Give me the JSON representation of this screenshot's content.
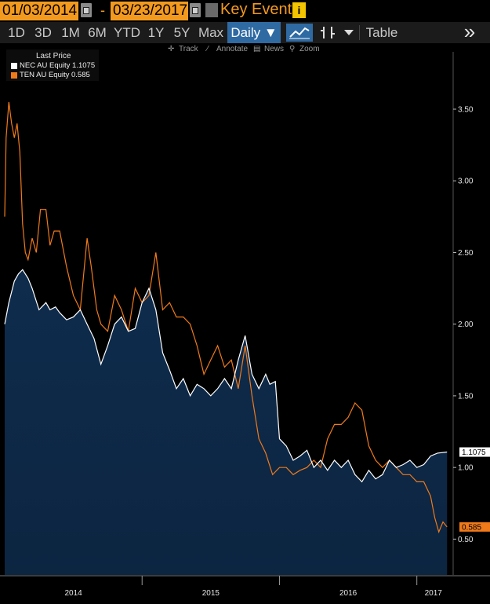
{
  "header": {
    "start_date": "01/03/2014",
    "end_date": "03/23/2017",
    "dash": "-",
    "key_events": "Key Events",
    "info_icon": "i"
  },
  "toolbar": {
    "periods": [
      "1D",
      "3D",
      "1M",
      "6M",
      "YTD",
      "1Y",
      "5Y",
      "Max"
    ],
    "frequency": "Daily ▼",
    "table": "Table",
    "more": "»"
  },
  "subtoolbar": {
    "track": "Track",
    "annotate": "Annotate",
    "news": "News",
    "zoom": "Zoom"
  },
  "colors": {
    "nec": "#ffffff",
    "ten": "#f07a1a",
    "area": "#0e2b4a",
    "background": "#000000"
  },
  "chart_data": {
    "type": "area",
    "legend_title": "Last Price",
    "legend_placement": "top-left",
    "y_ticks": [
      "0.50",
      "1.00",
      "1.50",
      "2.00",
      "2.50",
      "3.00",
      "3.50"
    ],
    "y_tick_values": [
      0.5,
      1.0,
      1.5,
      2.0,
      2.5,
      3.0,
      3.5
    ],
    "ylim": [
      0.25,
      3.9
    ],
    "x_labels": [
      "2014",
      "2015",
      "2016",
      "2017"
    ],
    "x_label_positions": [
      2014.5,
      2015.5,
      2016.5,
      2017.12
    ],
    "year_boundaries": [
      2015.0,
      2016.0,
      2017.0
    ],
    "xlim": [
      2014.0,
      2017.23
    ],
    "series": [
      {
        "name": "NEC AU Equity",
        "last_value": "1.1075",
        "legend_text": "NEC AU Equity 1.1075",
        "x": [
          2014.0,
          2014.03,
          2014.07,
          2014.1,
          2014.13,
          2014.17,
          2014.2,
          2014.25,
          2014.3,
          2014.33,
          2014.37,
          2014.4,
          2014.45,
          2014.5,
          2014.55,
          2014.6,
          2014.65,
          2014.7,
          2014.75,
          2014.8,
          2014.85,
          2014.9,
          2014.95,
          2015.0,
          2015.05,
          2015.1,
          2015.15,
          2015.2,
          2015.25,
          2015.3,
          2015.35,
          2015.4,
          2015.45,
          2015.5,
          2015.55,
          2015.6,
          2015.65,
          2015.7,
          2015.75,
          2015.8,
          2015.85,
          2015.9,
          2015.93,
          2015.97,
          2016.0,
          2016.05,
          2016.1,
          2016.15,
          2016.2,
          2016.25,
          2016.3,
          2016.35,
          2016.4,
          2016.45,
          2016.5,
          2016.55,
          2016.6,
          2016.65,
          2016.7,
          2016.75,
          2016.8,
          2016.85,
          2016.9,
          2016.95,
          2017.0,
          2017.05,
          2017.1,
          2017.15,
          2017.22
        ],
        "y": [
          2.0,
          2.15,
          2.3,
          2.35,
          2.38,
          2.32,
          2.25,
          2.1,
          2.15,
          2.1,
          2.12,
          2.08,
          2.03,
          2.05,
          2.1,
          2.0,
          1.9,
          1.72,
          1.85,
          2.0,
          2.05,
          1.95,
          1.97,
          2.15,
          2.25,
          2.1,
          1.8,
          1.68,
          1.55,
          1.62,
          1.5,
          1.58,
          1.55,
          1.5,
          1.55,
          1.62,
          1.55,
          1.75,
          1.92,
          1.65,
          1.55,
          1.65,
          1.58,
          1.6,
          1.2,
          1.15,
          1.05,
          1.08,
          1.12,
          1.0,
          1.05,
          0.98,
          1.05,
          1.0,
          1.05,
          0.95,
          0.9,
          0.98,
          0.92,
          0.95,
          1.05,
          1.0,
          1.02,
          1.05,
          1.0,
          1.02,
          1.08,
          1.1,
          1.1075
        ]
      },
      {
        "name": "TEN AU Equity",
        "last_value": "0.585",
        "legend_text": "TEN AU Equity 0.585",
        "x": [
          2014.0,
          2014.01,
          2014.03,
          2014.05,
          2014.07,
          2014.09,
          2014.11,
          2014.13,
          2014.15,
          2014.17,
          2014.2,
          2014.23,
          2014.26,
          2014.3,
          2014.33,
          2014.36,
          2014.4,
          2014.45,
          2014.5,
          2014.55,
          2014.6,
          2014.63,
          2014.67,
          2014.7,
          2014.75,
          2014.8,
          2014.85,
          2014.9,
          2014.95,
          2015.0,
          2015.05,
          2015.1,
          2015.15,
          2015.2,
          2015.25,
          2015.3,
          2015.35,
          2015.4,
          2015.45,
          2015.5,
          2015.55,
          2015.6,
          2015.65,
          2015.7,
          2015.75,
          2015.8,
          2015.85,
          2015.9,
          2015.95,
          2016.0,
          2016.05,
          2016.1,
          2016.15,
          2016.2,
          2016.25,
          2016.3,
          2016.35,
          2016.4,
          2016.45,
          2016.5,
          2016.55,
          2016.6,
          2016.65,
          2016.7,
          2016.75,
          2016.8,
          2016.85,
          2016.9,
          2016.95,
          2017.0,
          2017.05,
          2017.1,
          2017.13,
          2017.16,
          2017.19,
          2017.22
        ],
        "y": [
          2.75,
          3.3,
          3.55,
          3.4,
          3.3,
          3.4,
          3.2,
          2.7,
          2.5,
          2.45,
          2.6,
          2.5,
          2.8,
          2.8,
          2.55,
          2.65,
          2.65,
          2.4,
          2.2,
          2.1,
          2.6,
          2.4,
          2.1,
          2.0,
          1.95,
          2.2,
          2.1,
          1.95,
          2.25,
          2.15,
          2.2,
          2.5,
          2.1,
          2.15,
          2.05,
          2.05,
          2.0,
          1.85,
          1.65,
          1.75,
          1.85,
          1.7,
          1.75,
          1.55,
          1.85,
          1.5,
          1.2,
          1.1,
          0.95,
          1.0,
          1.0,
          0.95,
          0.98,
          1.0,
          1.05,
          1.0,
          1.2,
          1.3,
          1.3,
          1.35,
          1.45,
          1.4,
          1.15,
          1.05,
          1.0,
          1.05,
          1.0,
          0.95,
          0.95,
          0.9,
          0.9,
          0.8,
          0.65,
          0.55,
          0.62,
          0.585
        ]
      }
    ]
  }
}
